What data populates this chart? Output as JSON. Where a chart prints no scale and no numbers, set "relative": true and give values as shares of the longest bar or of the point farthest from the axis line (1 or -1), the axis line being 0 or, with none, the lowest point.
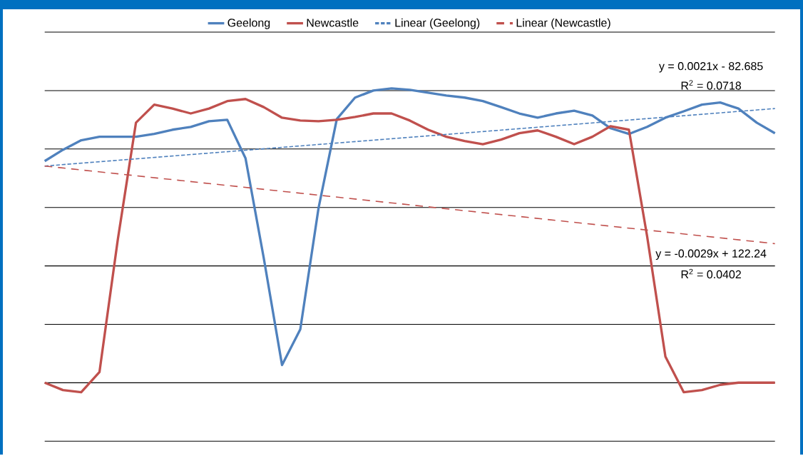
{
  "chart_data": {
    "type": "line",
    "relative": true,
    "grid": "y",
    "legend": "top",
    "marker": "none",
    "categories": [
      null,
      null,
      null,
      null,
      null,
      null,
      null,
      null,
      null,
      null,
      null,
      null,
      null,
      null,
      null,
      null,
      null,
      null,
      null,
      null,
      null,
      null,
      null,
      null,
      null,
      null,
      null,
      null,
      null,
      null,
      null,
      null,
      null,
      null,
      null,
      null,
      null,
      null,
      null,
      null,
      null
    ],
    "series": [
      {
        "name": "Geelong",
        "color": "#4f81bd",
        "line_style": "solid",
        "values": [
          0.794,
          0.826,
          0.853,
          0.863,
          0.863,
          0.863,
          0.871,
          0.883,
          0.891,
          0.907,
          0.911,
          0.802,
          0.519,
          0.216,
          0.317,
          0.661,
          0.913,
          0.974,
          0.994,
          1.0,
          0.996,
          0.988,
          0.98,
          0.974,
          0.964,
          0.947,
          0.929,
          0.917,
          0.929,
          0.937,
          0.923,
          0.887,
          0.871,
          0.891,
          0.917,
          0.935,
          0.954,
          0.96,
          0.943,
          0.903,
          0.873
        ]
      },
      {
        "name": "Newcastle",
        "color": "#c0504d",
        "line_style": "solid",
        "values": [
          0.166,
          0.145,
          0.139,
          0.196,
          0.57,
          0.903,
          0.954,
          0.943,
          0.929,
          0.943,
          0.964,
          0.97,
          0.947,
          0.917,
          0.909,
          0.907,
          0.911,
          0.919,
          0.929,
          0.929,
          0.909,
          0.883,
          0.863,
          0.851,
          0.842,
          0.855,
          0.873,
          0.881,
          0.863,
          0.842,
          0.863,
          0.893,
          0.883,
          0.58,
          0.24,
          0.139,
          0.145,
          0.16,
          0.166,
          0.166,
          0.166
        ]
      },
      {
        "name": "Linear (Geelong)",
        "type": "line",
        "color": "#4f81bd",
        "line_style": "dashed",
        "values": [
          0.78,
          null,
          null,
          null,
          null,
          null,
          null,
          null,
          null,
          null,
          null,
          null,
          null,
          null,
          null,
          null,
          null,
          null,
          null,
          null,
          null,
          null,
          null,
          null,
          null,
          null,
          null,
          null,
          null,
          null,
          null,
          null,
          null,
          null,
          null,
          null,
          null,
          null,
          null,
          null,
          0.943
        ]
      },
      {
        "name": "Linear (Newcastle)",
        "type": "line",
        "color": "#c0504d",
        "line_style": "dashed",
        "values": [
          0.78,
          null,
          null,
          null,
          null,
          null,
          null,
          null,
          null,
          null,
          null,
          null,
          null,
          null,
          null,
          null,
          null,
          null,
          null,
          null,
          null,
          null,
          null,
          null,
          null,
          null,
          null,
          null,
          null,
          null,
          null,
          null,
          null,
          null,
          null,
          null,
          null,
          null,
          null,
          null,
          0.56
        ]
      }
    ],
    "annotations": [
      "y = 0.0021x - 82.685",
      "R$^{2}$ = 0.0718",
      "y = -0.0029x + 122.24",
      "R$^{2}$ = 0.0402"
    ]
  }
}
